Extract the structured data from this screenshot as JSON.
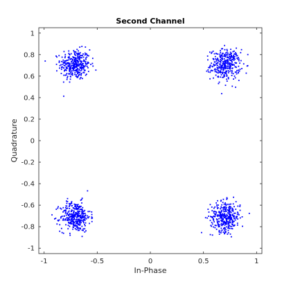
{
  "chart_data": {
    "type": "scatter",
    "title": "Second Channel",
    "xlabel": "In-Phase",
    "ylabel": "Quadrature",
    "xlim": [
      -1.05,
      1.05
    ],
    "ylim": [
      -1.05,
      1.05
    ],
    "xticks": [
      -1,
      -0.5,
      0,
      0.5,
      1
    ],
    "xtick_labels": [
      "-1",
      "-0.5",
      "0",
      "0.5",
      "1"
    ],
    "yticks": [
      -1,
      -0.8,
      -0.6,
      -0.4,
      -0.2,
      0,
      0.2,
      0.4,
      0.6,
      0.8,
      1
    ],
    "ytick_labels": [
      "-1",
      "-0.8",
      "-0.6",
      "-0.4",
      "-0.2",
      "0",
      "0.2",
      "0.4",
      "0.6",
      "0.8",
      "1"
    ],
    "grid": false,
    "marker_color": "#0000ff",
    "series": [
      {
        "clusters": [
          {
            "center": [
              -0.707,
              0.707
            ],
            "spread": 0.07,
            "count": 350
          },
          {
            "center": [
              0.707,
              0.707
            ],
            "spread": 0.07,
            "count": 350
          },
          {
            "center": [
              -0.707,
              -0.707
            ],
            "spread": 0.07,
            "count": 350
          },
          {
            "center": [
              0.707,
              -0.707
            ],
            "spread": 0.07,
            "count": 350
          }
        ]
      }
    ]
  }
}
